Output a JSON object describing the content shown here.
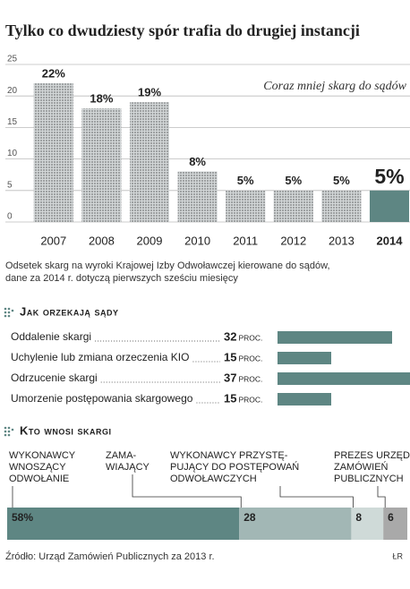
{
  "title": "Tylko co dwudziesty spór trafia do drugiej instancji",
  "chart_data": [
    {
      "type": "bar",
      "categories": [
        "2007",
        "2008",
        "2009",
        "2010",
        "2011",
        "2012",
        "2013",
        "2014"
      ],
      "values": [
        22,
        18,
        19,
        8,
        5,
        5,
        5,
        5
      ],
      "value_labels": [
        "22%",
        "18%",
        "19%",
        "8%",
        "5%",
        "5%",
        "5%",
        "5%"
      ],
      "colors": [
        "#9ea6a8",
        "#9ea6a8",
        "#9ea6a8",
        "#9ea6a8",
        "#9ea6a8",
        "#9ea6a8",
        "#9ea6a8",
        "#5e8683"
      ],
      "ylim": [
        0,
        25
      ],
      "yticks": [
        0,
        5,
        10,
        15,
        20,
        25
      ],
      "grid": true,
      "annotation": "Coraz mniej skarg do sądów",
      "caption": [
        "Odsetek skarg na wyroki Krajowej Izby Odwoławczej kierowane do sądów,",
        "dane za 2014 r. dotyczą pierwszych sześciu miesięcy"
      ]
    },
    {
      "type": "barh",
      "title": "Jak orzekają sądy",
      "categories": [
        "Oddalenie skargi",
        "Uchylenie lub zmiana orzeczenia KIO",
        "Odrzucenie skargi",
        "Umorzenie postępowania skargowego"
      ],
      "values": [
        32,
        15,
        37,
        15
      ],
      "unit": "PROC.",
      "color": "#5e8683"
    },
    {
      "type": "stacked_bar",
      "title": "Kto wnosi skargi",
      "categories": [
        [
          "WYKONAWCY",
          "WNOSZĄCY",
          "ODWOŁANIE"
        ],
        [
          "ZAMA-",
          "WIAJĄCY"
        ],
        [
          "WYKONAWCY PRZYSTĘ-",
          "PUJĄCY DO POSTĘPOWAŃ",
          "ODWOŁAWCZYCH"
        ],
        [
          "PREZES URZĘDU",
          "ZAMÓWIEŃ",
          "PUBLICZNYCH"
        ]
      ],
      "values": [
        58,
        28,
        8,
        6
      ],
      "value_labels": [
        "58%",
        "28",
        "8",
        "6"
      ],
      "colors": [
        "#5e8683",
        "#a2b7b5",
        "#cfdad8",
        "#a9a9a9"
      ]
    }
  ],
  "source": "Źródło: Urząd Zamówień Publicznych za 2013 r.",
  "credit": "ŁR"
}
